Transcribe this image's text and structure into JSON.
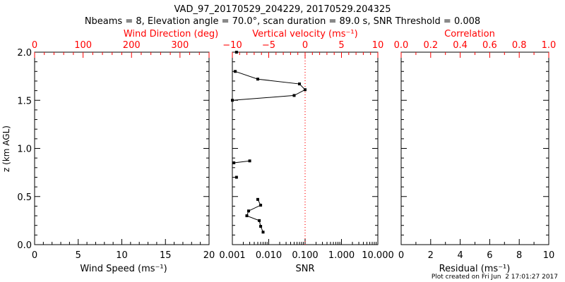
{
  "title_line1": "VAD_97_20170529_204229, 20170529.204325",
  "title_line2": "Nbeams = 8, Elevation angle = 70.0°, scan duration = 89.0 s, SNR Threshold = 0.008",
  "footer": "Plot created on Fri Jun  2 17:01:27 2017",
  "colors": {
    "axis": "#000000",
    "top_axis": "#ff0000",
    "zero_line": "#ff0000",
    "data": "#000000",
    "background": "#ffffff"
  },
  "chart_data": [
    {
      "type": "scatter",
      "id": "wind",
      "xlabel": "Wind Speed (ms⁻¹)",
      "xlim": [
        0,
        20
      ],
      "xticks": [
        "0",
        "5",
        "10",
        "15",
        "20"
      ],
      "top_xlabel": "Wind Direction (deg)",
      "top_xlim": [
        0,
        360
      ],
      "top_xticks": [
        "0",
        "100",
        "200",
        "300"
      ],
      "ylabel": "z (km AGL)",
      "ylim": [
        0.0,
        2.0
      ],
      "yticks": [
        "0.0",
        "0.5",
        "1.0",
        "1.5",
        "2.0"
      ],
      "series": []
    },
    {
      "type": "line",
      "id": "snr",
      "xlabel": "SNR",
      "x_scale": "log",
      "xlim": [
        0.001,
        10
      ],
      "xticks": [
        "0.001",
        "0.010",
        "0.100",
        "1.000",
        "10.000"
      ],
      "top_xlabel": "Vertical velocity (ms⁻¹)",
      "top_xlim": [
        -10,
        10
      ],
      "top_xticks": [
        "−10",
        "−5",
        "0",
        "5",
        "10"
      ],
      "ylim": [
        0.0,
        2.0
      ],
      "zero_line_at": 0,
      "series": [
        {
          "segments": [
            [
              [
                0.0013,
                2.0
              ]
            ],
            [
              [
                0.0012,
                1.8
              ],
              [
                0.005,
                1.72
              ],
              [
                0.07,
                1.67
              ],
              [
                0.1,
                1.61
              ],
              [
                0.05,
                1.55
              ],
              [
                0.001,
                1.5
              ]
            ],
            [
              [
                0.0011,
                0.85
              ],
              [
                0.003,
                0.87
              ]
            ],
            [
              [
                0.0013,
                0.7
              ]
            ],
            [
              [
                0.005,
                0.47
              ],
              [
                0.006,
                0.41
              ],
              [
                0.0028,
                0.35
              ],
              [
                0.0025,
                0.3
              ],
              [
                0.0055,
                0.25
              ],
              [
                0.006,
                0.19
              ],
              [
                0.007,
                0.13
              ]
            ]
          ]
        }
      ]
    },
    {
      "type": "scatter",
      "id": "residual",
      "xlabel": "Residual (ms⁻¹)",
      "xlim": [
        0,
        10
      ],
      "xticks": [
        "0",
        "2",
        "4",
        "6",
        "8",
        "10"
      ],
      "top_xlabel": "Correlation",
      "top_xlim": [
        0.0,
        1.0
      ],
      "top_xticks": [
        "0.0",
        "0.2",
        "0.4",
        "0.6",
        "0.8",
        "1.0"
      ],
      "ylim": [
        0.0,
        2.0
      ],
      "series": []
    }
  ]
}
